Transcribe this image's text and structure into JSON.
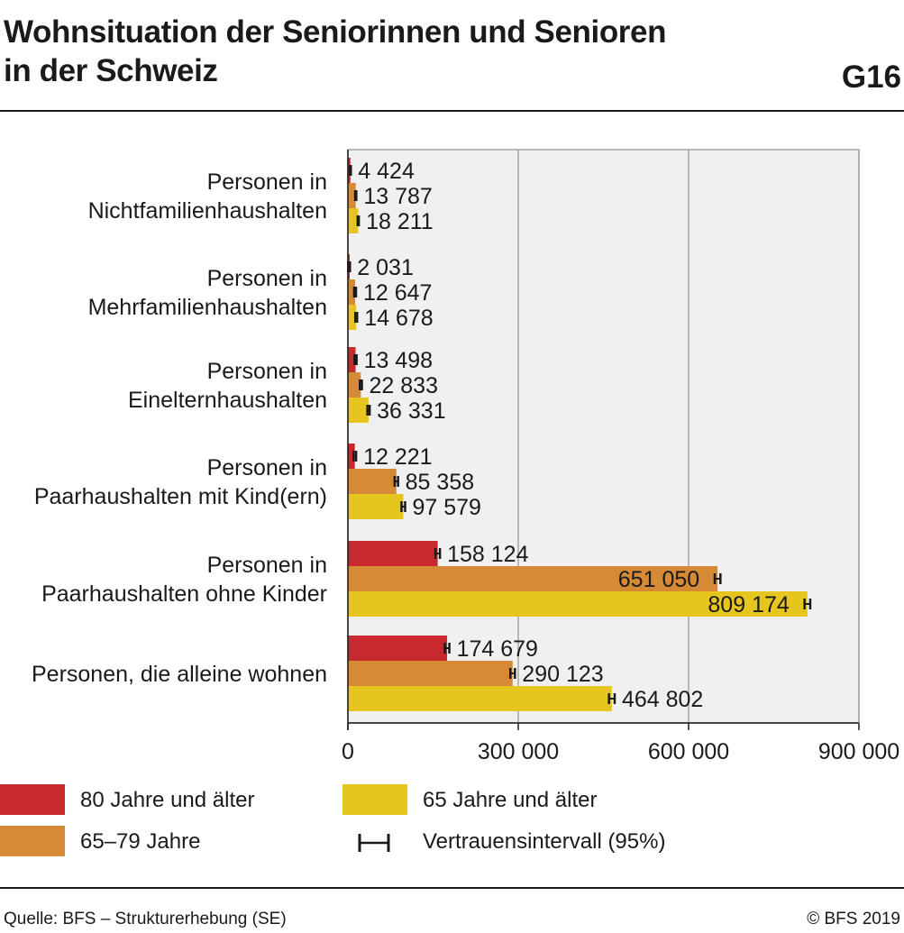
{
  "title_line1": "Wohnsituation der Seniorinnen und Senioren",
  "title_line2": "in der Schweiz",
  "chart_id": "G16",
  "legend": {
    "s80": "80 Jahre und älter",
    "s6579": "65–79 Jahre",
    "s65": "65 Jahre und älter",
    "ci": "Vertrauensintervall (95%)"
  },
  "footer": {
    "source": "Quelle: BFS – Strukturerhebung (SE)",
    "copyright": "© BFS 2019"
  },
  "colors": {
    "s80": "#c8282e",
    "s6579": "#d68a35",
    "s65": "#e6c51e",
    "plot_bg": "#f0f0f0",
    "grid": "#a6a6a6"
  },
  "chart_data": {
    "type": "bar",
    "orientation": "horizontal",
    "categories": [
      [
        "Personen in",
        "Nichtfamilienhaushalten"
      ],
      [
        "Personen in",
        "Mehrfamilienhaushalten"
      ],
      [
        "Personen in",
        "Einelternhaushalten"
      ],
      [
        "Personen in",
        "Paarhaushalten mit Kind(ern)"
      ],
      [
        "Personen in",
        "Paarhaushalten ohne Kinder"
      ],
      [
        "Personen, die alleine wohnen"
      ]
    ],
    "series": [
      {
        "name": "80 Jahre und älter",
        "color_key": "s80",
        "values": [
          4424,
          2031,
          13498,
          12221,
          158124,
          174679
        ],
        "labels": [
          "4 424",
          "2 031",
          "13 498",
          "12 221",
          "158 124",
          "174 679"
        ]
      },
      {
        "name": "65–79 Jahre",
        "color_key": "s6579",
        "values": [
          13787,
          12647,
          22833,
          85358,
          651050,
          290123
        ],
        "labels": [
          "13 787",
          "12 647",
          "22 833",
          "85 358",
          "651 050",
          "290 123"
        ]
      },
      {
        "name": "65 Jahre und älter",
        "color_key": "s65",
        "values": [
          18211,
          14678,
          36331,
          97579,
          809174,
          464802
        ],
        "labels": [
          "18 211",
          "14 678",
          "36 331",
          "97 579",
          "809 174",
          "464 802"
        ]
      }
    ],
    "xlim": [
      0,
      900000
    ],
    "xticks": [
      0,
      300000,
      600000,
      900000
    ],
    "xtick_labels": [
      "0",
      "300 000",
      "600 000",
      "900 000"
    ],
    "grid": true,
    "legend_position": "bottom",
    "confidence_interval": "95%"
  }
}
